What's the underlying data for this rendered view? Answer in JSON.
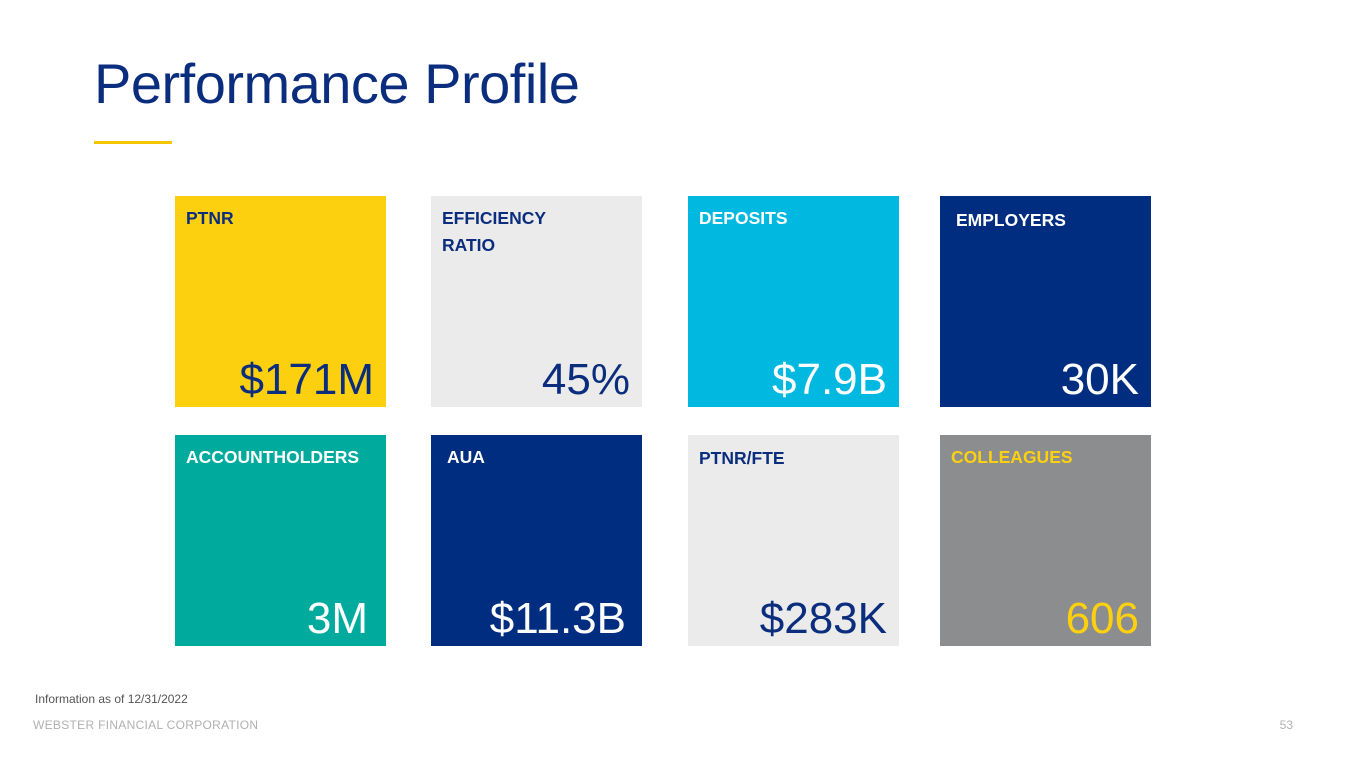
{
  "title": "Performance Profile",
  "tiles": [
    {
      "label": "PTNR",
      "value": "$171M",
      "bg": "#fdd00f",
      "label_color": "#0a2d7e",
      "value_color": "#0a2d7e"
    },
    {
      "label": "EFFICIENCY RATIO",
      "value": "45%",
      "bg": "#ebebeb",
      "label_color": "#0a2d7e",
      "value_color": "#0a2d7e"
    },
    {
      "label": "DEPOSITS",
      "value": "$7.9B",
      "bg": "#00b8e0",
      "label_color": "#ffffff",
      "value_color": "#ffffff"
    },
    {
      "label": "EMPLOYERS",
      "value": "30K",
      "bg": "#002d80",
      "label_color": "#ffffff",
      "value_color": "#ffffff"
    },
    {
      "label": "ACCOUNTHOLDERS",
      "value": "3M",
      "bg": "#00ab9e",
      "label_color": "#ffffff",
      "value_color": "#ffffff"
    },
    {
      "label": "AUA",
      "value": "$11.3B",
      "bg": "#002d80",
      "label_color": "#ffffff",
      "value_color": "#ffffff"
    },
    {
      "label": "PTNR/FTE",
      "value": "$283K",
      "bg": "#ebebeb",
      "label_color": "#0a2d7e",
      "value_color": "#0a2d7e"
    },
    {
      "label": "COLLEAGUES",
      "value": "606",
      "bg": "#8c8d8f",
      "label_color": "#fdd00f",
      "value_color": "#fdd00f"
    }
  ],
  "footnote": "Information as of 12/31/2022",
  "footer": "WEBSTER FINANCIAL CORPORATION",
  "page_number": "53",
  "colors": {
    "title": "#0a2d7e",
    "accent_rule": "#f5c400"
  }
}
